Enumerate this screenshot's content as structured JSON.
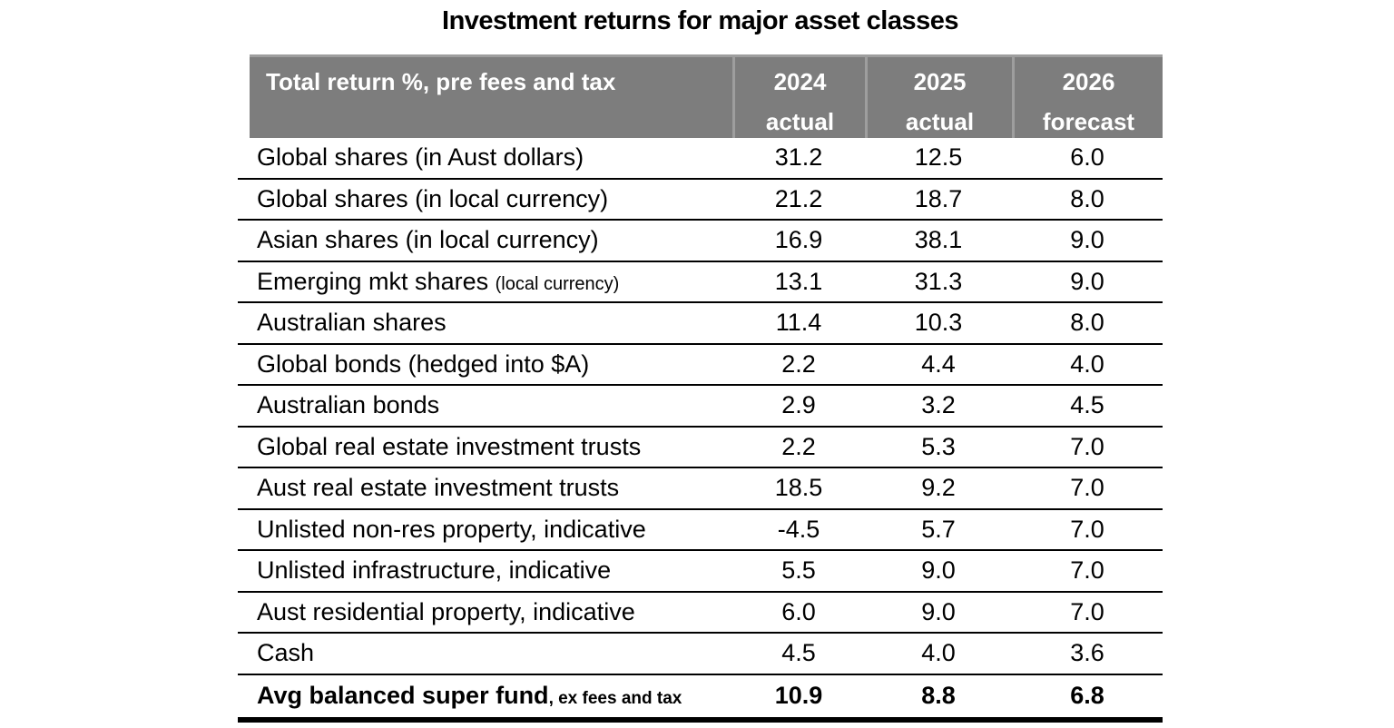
{
  "chart_data": {
    "type": "table",
    "title": "Investment returns for major asset classes",
    "corner_label": "Total return %, pre fees and tax",
    "columns": [
      {
        "year": "2024",
        "kind": "actual"
      },
      {
        "year": "2025",
        "kind": "actual"
      },
      {
        "year": "2026",
        "kind": "forecast"
      }
    ],
    "rows": [
      {
        "label": "Global shares (in Aust dollars)",
        "suffix": "",
        "values": [
          "31.2",
          "12.5",
          "6.0"
        ]
      },
      {
        "label": "Global shares (in local currency)",
        "suffix": "",
        "values": [
          "21.2",
          "18.7",
          "8.0"
        ]
      },
      {
        "label": "Asian shares (in local currency)",
        "suffix": "",
        "values": [
          "16.9",
          "38.1",
          "9.0"
        ]
      },
      {
        "label": "Emerging mkt shares ",
        "suffix": "(local currency)",
        "values": [
          "13.1",
          "31.3",
          "9.0"
        ]
      },
      {
        "label": "Australian shares",
        "suffix": "",
        "values": [
          "11.4",
          "10.3",
          "8.0"
        ]
      },
      {
        "label": "Global bonds (hedged into $A)",
        "suffix": "",
        "values": [
          "2.2",
          "4.4",
          "4.0"
        ]
      },
      {
        "label": "Australian bonds",
        "suffix": "",
        "values": [
          "2.9",
          "3.2",
          "4.5"
        ]
      },
      {
        "label": "Global real estate investment trusts",
        "suffix": "",
        "values": [
          "2.2",
          "5.3",
          "7.0"
        ]
      },
      {
        "label": "Aust real estate investment trusts",
        "suffix": "",
        "values": [
          "18.5",
          "9.2",
          "7.0"
        ]
      },
      {
        "label": "Unlisted non-res property, indicative",
        "suffix": "",
        "values": [
          "-4.5",
          "5.7",
          "7.0"
        ]
      },
      {
        "label": "Unlisted infrastructure, indicative",
        "suffix": "",
        "values": [
          "5.5",
          "9.0",
          "7.0"
        ]
      },
      {
        "label": "Aust residential property, indicative",
        "suffix": "",
        "values": [
          "6.0",
          "9.0",
          "7.0"
        ]
      },
      {
        "label": "Cash",
        "suffix": "",
        "values": [
          "4.5",
          "4.0",
          "3.6"
        ]
      },
      {
        "label": "Avg balanced super fund",
        "suffix": ", ex fees and tax",
        "values": [
          "10.9",
          "8.8",
          "6.8"
        ]
      }
    ],
    "numeric_values": [
      [
        31.2,
        12.5,
        6.0
      ],
      [
        21.2,
        18.7,
        8.0
      ],
      [
        16.9,
        38.1,
        9.0
      ],
      [
        13.1,
        31.3,
        9.0
      ],
      [
        11.4,
        10.3,
        8.0
      ],
      [
        2.2,
        4.4,
        4.0
      ],
      [
        2.9,
        3.2,
        4.5
      ],
      [
        2.2,
        5.3,
        7.0
      ],
      [
        18.5,
        9.2,
        7.0
      ],
      [
        -4.5,
        5.7,
        7.0
      ],
      [
        5.5,
        9.0,
        7.0
      ],
      [
        6.0,
        9.0,
        7.0
      ],
      [
        4.5,
        4.0,
        3.6
      ],
      [
        10.9,
        8.8,
        6.8
      ]
    ],
    "colors": {
      "header_bg": "#7d7d7d",
      "header_divider": "#9e9e9e",
      "header_text": "#ffffff",
      "body_text": "#000000",
      "row_line": "#000000"
    }
  }
}
